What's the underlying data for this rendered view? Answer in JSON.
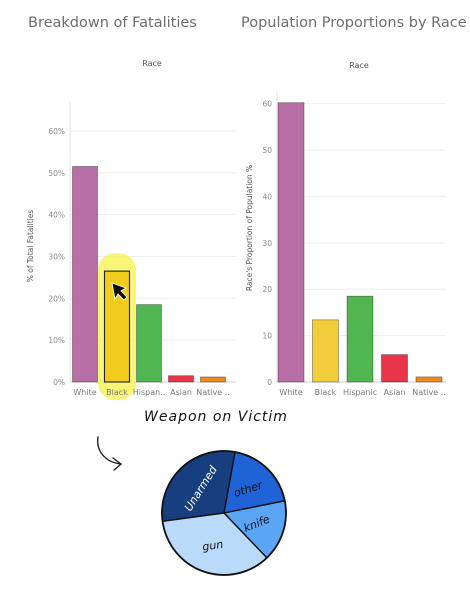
{
  "chart_data": [
    {
      "type": "bar",
      "title": "Breakdown of Fatalities",
      "subtitle": "Race",
      "ylabel": "% of Total Fatalities",
      "categories": [
        "White",
        "Black",
        "Hispan..",
        "Asian",
        "Native .."
      ],
      "values": [
        51.5,
        26.5,
        18.5,
        1.5,
        1.2
      ],
      "ylim": [
        0,
        65
      ],
      "ytick_labels": [
        "0%",
        "10%",
        "20%",
        "30%",
        "40%",
        "50%",
        "60%"
      ],
      "colors": [
        "#b86fa6",
        "#f2cc1d",
        "#52b650",
        "#e8354a",
        "#f08a1c"
      ],
      "highlighted": "Black",
      "highlight_color": "#f5f24a",
      "grid": true
    },
    {
      "type": "bar",
      "title": "Population Proportions by Race",
      "subtitle": "Race",
      "ylabel": "Race's Proportion of Population %",
      "categories": [
        "White",
        "Black",
        "Hispanic",
        "Asian",
        "Native .."
      ],
      "values": [
        60.2,
        13.4,
        18.5,
        5.9,
        1.1
      ],
      "ylim": [
        0,
        61
      ],
      "ytick_labels": [
        "0",
        "10",
        "20",
        "30",
        "40",
        "50",
        "60"
      ],
      "colors": [
        "#b86fa6",
        "#f2cc3a",
        "#52b650",
        "#e8354a",
        "#f08a1c"
      ],
      "grid": true
    },
    {
      "type": "pie",
      "title": "Weapon on Victim",
      "categories": [
        "Unarmed",
        "other",
        "knife",
        "gun"
      ],
      "values": [
        30,
        19,
        16,
        35
      ],
      "colors": [
        "#173f80",
        "#1f63d6",
        "#5ba5f5",
        "#b9dbf9"
      ]
    }
  ]
}
